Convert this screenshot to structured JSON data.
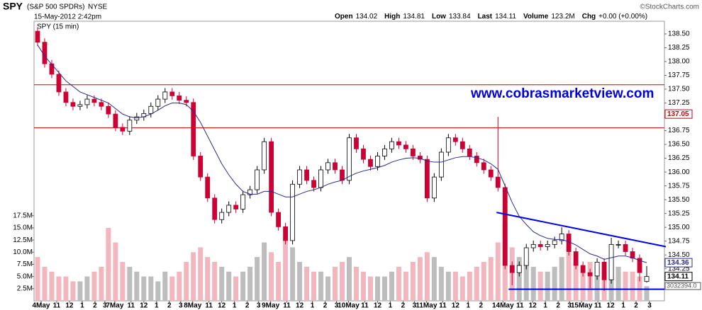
{
  "header": {
    "symbol": "SPY",
    "name": "(S&P 500 SPDRs)",
    "exchange": "NYSE",
    "date": "15-May-2012 2:42pm",
    "copyright": "©StockCharts.com",
    "stats": [
      {
        "label": "Open",
        "value": 134.02
      },
      {
        "label": "High",
        "value": 134.81
      },
      {
        "label": "Low",
        "value": 133.84
      },
      {
        "label": "Last",
        "value": 134.11
      },
      {
        "label": "Volume",
        "value": "123.2M"
      },
      {
        "label": "Chg",
        "value": "+0.00 (+0.00%)"
      }
    ]
  },
  "chart_data": {
    "type": "candlestick",
    "label": "SPY (15 min)",
    "annotation": "www.cobrasmarketview.com",
    "xlim": [
      -0.5,
      88.5
    ],
    "xticks": [
      {
        "value": 0.5,
        "label": "4May"
      },
      {
        "value": 2.7,
        "label": "11"
      },
      {
        "value": 4.5,
        "label": "12"
      },
      {
        "value": 6.3,
        "label": "1"
      },
      {
        "value": 8.1,
        "label": "2"
      },
      {
        "value": 9.5,
        "label": "3"
      },
      {
        "value": 10.9,
        "label": "7May"
      },
      {
        "value": 13.2,
        "label": "11"
      },
      {
        "value": 15,
        "label": "12"
      },
      {
        "value": 16.8,
        "label": "1"
      },
      {
        "value": 18.6,
        "label": "2"
      },
      {
        "value": 20.2,
        "label": "3"
      },
      {
        "value": 21.9,
        "label": "8May"
      },
      {
        "value": 24.2,
        "label": "11"
      },
      {
        "value": 26,
        "label": "12"
      },
      {
        "value": 27.8,
        "label": "1"
      },
      {
        "value": 29.6,
        "label": "2"
      },
      {
        "value": 31.2,
        "label": "3"
      },
      {
        "value": 32.9,
        "label": "9May"
      },
      {
        "value": 35.2,
        "label": "11"
      },
      {
        "value": 37,
        "label": "12"
      },
      {
        "value": 38.8,
        "label": "1"
      },
      {
        "value": 40.6,
        "label": "2"
      },
      {
        "value": 42.2,
        "label": "3"
      },
      {
        "value": 43.9,
        "label": "10May"
      },
      {
        "value": 46.2,
        "label": "11"
      },
      {
        "value": 48,
        "label": "12"
      },
      {
        "value": 49.8,
        "label": "1"
      },
      {
        "value": 51.6,
        "label": "2"
      },
      {
        "value": 53.2,
        "label": "3"
      },
      {
        "value": 54.9,
        "label": "11May"
      },
      {
        "value": 57.2,
        "label": "11"
      },
      {
        "value": 59,
        "label": "12"
      },
      {
        "value": 60.8,
        "label": "1"
      },
      {
        "value": 62.6,
        "label": "2"
      },
      {
        "value": 65.7,
        "label": "14May"
      },
      {
        "value": 68.1,
        "label": "11"
      },
      {
        "value": 69.9,
        "label": "12"
      },
      {
        "value": 71.7,
        "label": "1"
      },
      {
        "value": 73.5,
        "label": "2"
      },
      {
        "value": 75.1,
        "label": "3"
      },
      {
        "value": 76.8,
        "label": "15May"
      },
      {
        "value": 79.1,
        "label": "11"
      },
      {
        "value": 80.9,
        "label": "12"
      },
      {
        "value": 82.7,
        "label": "1"
      },
      {
        "value": 84.5,
        "label": "2"
      },
      {
        "value": 86.4,
        "label": "3"
      }
    ],
    "ylim": [
      133.67,
      138.73
    ],
    "yticks": [
      {
        "value": 134.25,
        "label": "134.25"
      },
      {
        "value": 134.5,
        "label": "134.50"
      },
      {
        "value": 134.75,
        "label": "134.75"
      },
      {
        "value": 135,
        "label": "135.00"
      },
      {
        "value": 135.25,
        "label": "135.25"
      },
      {
        "value": 135.5,
        "label": "135.50"
      },
      {
        "value": 135.75,
        "label": "135.75"
      },
      {
        "value": 136,
        "label": "136.00"
      },
      {
        "value": 136.25,
        "label": "136.25"
      },
      {
        "value": 136.5,
        "label": "136.50"
      },
      {
        "value": 136.75,
        "label": "136.75"
      },
      {
        "value": 137,
        "label": "137.00"
      },
      {
        "value": 137.25,
        "label": "137.25"
      },
      {
        "value": 137.5,
        "label": "137.50"
      },
      {
        "value": 137.75,
        "label": "137.75"
      },
      {
        "value": 138,
        "label": "138.00"
      },
      {
        "value": 138.25,
        "label": "138.25"
      },
      {
        "value": 138.5,
        "label": "138.50"
      }
    ],
    "y2lim": [
      0,
      57.5
    ],
    "y2ticks": [
      {
        "value": 2.5,
        "label": "2.5M"
      },
      {
        "value": 5,
        "label": "5.0M"
      },
      {
        "value": 7.5,
        "label": "7.5M"
      },
      {
        "value": 10,
        "label": "10.0M"
      },
      {
        "value": 12.5,
        "label": "12.5M"
      },
      {
        "value": 15,
        "label": "15.0M"
      },
      {
        "value": 17.5,
        "label": "17.5M"
      }
    ],
    "up_color": "#000000",
    "down_color": "#cc0033",
    "volume_up_color": "#bdbdbd",
    "volume_down_color": "#f2b6bf",
    "open": [
      138.55,
      138.35,
      137.96,
      137.77,
      137.45,
      137.26,
      137.19,
      137.22,
      137.32,
      137.26,
      137.19,
      137.05,
      136.81,
      136.74,
      136.94,
      137.0,
      137.06,
      137.19,
      137.32,
      137.45,
      137.38,
      137.3,
      137.26,
      136.29,
      135.91,
      135.53,
      135.14,
      135.27,
      135.4,
      135.33,
      135.59,
      135.68,
      136.04,
      136.55,
      135.27,
      135.01,
      134.76,
      135.78,
      136.04,
      135.85,
      135.72,
      136.04,
      136.17,
      136.04,
      135.85,
      136.62,
      136.42,
      136.23,
      136.1,
      136.29,
      136.42,
      136.55,
      136.49,
      136.42,
      136.29,
      136.23,
      135.53,
      135.91,
      136.36,
      136.62,
      136.55,
      136.42,
      136.29,
      136.17,
      136.04,
      135.91,
      135.72,
      134.31,
      134.18,
      134.31,
      134.63,
      134.69,
      134.65,
      134.69,
      134.76,
      134.88,
      134.56,
      134.31,
      134.18,
      134.12,
      134.37,
      134.05,
      134.69,
      134.69,
      134.56,
      134.44,
      134.02
    ],
    "high": [
      138.62,
      138.42,
      138.03,
      137.84,
      137.52,
      137.33,
      137.29,
      137.39,
      137.39,
      137.33,
      137.26,
      137.12,
      136.88,
      137.01,
      137.07,
      137.13,
      137.26,
      137.39,
      137.52,
      137.52,
      137.45,
      137.37,
      137.33,
      136.36,
      135.98,
      135.6,
      135.34,
      135.47,
      135.47,
      135.66,
      135.75,
      136.11,
      136.62,
      136.62,
      135.34,
      135.08,
      135.85,
      136.11,
      136.11,
      135.92,
      136.11,
      136.24,
      136.24,
      136.11,
      136.69,
      136.69,
      136.49,
      136.3,
      136.36,
      136.49,
      136.62,
      136.62,
      136.56,
      136.49,
      136.36,
      136.3,
      135.98,
      136.43,
      136.69,
      136.69,
      136.62,
      136.49,
      136.36,
      136.24,
      136.11,
      137.0,
      135.79,
      134.38,
      134.38,
      134.7,
      134.76,
      134.76,
      134.76,
      134.83,
      135.0,
      134.95,
      134.63,
      134.38,
      134.25,
      134.44,
      134.44,
      134.81,
      134.76,
      134.76,
      134.63,
      134.51,
      134.3
    ],
    "low": [
      138.28,
      137.89,
      137.7,
      137.38,
      137.19,
      137.12,
      137.12,
      137.15,
      137.19,
      137.12,
      136.98,
      136.74,
      136.67,
      136.67,
      136.87,
      136.93,
      136.99,
      137.12,
      137.25,
      137.31,
      137.23,
      137.19,
      136.22,
      135.84,
      135.46,
      135.07,
      135.07,
      135.2,
      135.26,
      135.26,
      135.52,
      135.61,
      135.97,
      135.2,
      134.94,
      134.69,
      134.69,
      135.71,
      135.78,
      135.65,
      135.65,
      135.97,
      135.97,
      135.78,
      135.78,
      136.35,
      136.16,
      136.03,
      136.03,
      136.22,
      136.35,
      136.42,
      136.35,
      136.22,
      136.16,
      135.46,
      135.46,
      135.84,
      136.29,
      136.48,
      136.35,
      136.22,
      136.1,
      135.97,
      135.84,
      135.65,
      134.24,
      133.95,
      134.11,
      134.24,
      134.56,
      134.58,
      134.58,
      134.62,
      134.69,
      134.49,
      134.24,
      134.11,
      133.9,
      134.05,
      133.85,
      133.98,
      134.62,
      134.49,
      134.37,
      134.02,
      134.0
    ],
    "close": [
      138.35,
      137.96,
      137.77,
      137.45,
      137.26,
      137.19,
      137.22,
      137.32,
      137.26,
      137.19,
      137.05,
      136.81,
      136.74,
      136.94,
      137.0,
      137.06,
      137.19,
      137.32,
      137.45,
      137.38,
      137.3,
      137.26,
      136.29,
      135.91,
      135.53,
      135.14,
      135.27,
      135.4,
      135.33,
      135.59,
      135.68,
      136.04,
      136.55,
      135.27,
      135.01,
      134.76,
      135.78,
      136.04,
      135.85,
      135.72,
      136.04,
      136.17,
      136.04,
      135.85,
      136.62,
      136.42,
      136.23,
      136.1,
      136.29,
      136.42,
      136.55,
      136.49,
      136.42,
      136.29,
      136.23,
      135.53,
      135.91,
      136.36,
      136.62,
      136.55,
      136.42,
      136.29,
      136.17,
      136.04,
      135.91,
      135.72,
      134.31,
      134.18,
      134.31,
      134.63,
      134.69,
      134.65,
      134.69,
      134.76,
      134.88,
      134.56,
      134.31,
      134.18,
      134.12,
      134.37,
      134.05,
      134.69,
      134.69,
      134.56,
      134.44,
      134.18,
      134.11
    ],
    "volume": [
      9,
      7,
      6,
      5,
      5,
      4,
      4,
      5,
      6,
      7,
      15,
      12,
      8,
      7,
      6,
      5,
      5,
      4,
      6,
      5,
      6,
      8,
      10,
      11,
      9,
      8,
      7,
      6,
      5,
      6,
      7,
      9,
      12,
      10,
      8,
      13,
      11,
      8,
      7,
      6,
      6,
      5,
      7,
      8,
      9,
      7,
      6,
      5,
      5,
      5,
      6,
      7,
      6,
      8,
      9,
      10,
      9,
      7,
      6,
      6,
      5,
      6,
      7,
      8,
      9,
      12,
      16,
      11,
      9,
      8,
      7,
      6,
      6,
      7,
      9,
      10,
      8,
      7,
      8,
      7,
      6,
      9,
      7,
      6,
      6,
      5,
      3
    ],
    "ma": {
      "color": "#2b2b8c",
      "values": [
        138.3,
        138.1,
        137.95,
        137.8,
        137.65,
        137.55,
        137.45,
        137.4,
        137.35,
        137.3,
        137.25,
        137.15,
        137.05,
        137.0,
        136.98,
        137.0,
        137.05,
        137.12,
        137.2,
        137.25,
        137.25,
        137.22,
        137.1,
        136.9,
        136.65,
        136.4,
        136.15,
        135.95,
        135.78,
        135.65,
        135.6,
        135.6,
        135.65,
        135.65,
        135.6,
        135.55,
        135.55,
        135.6,
        135.65,
        135.68,
        135.72,
        135.78,
        135.82,
        135.85,
        135.92,
        135.98,
        136.02,
        136.05,
        136.08,
        136.12,
        136.18,
        136.22,
        136.25,
        136.26,
        136.25,
        136.2,
        136.18,
        136.18,
        136.22,
        136.26,
        136.28,
        136.28,
        136.26,
        136.22,
        136.15,
        136.05,
        135.75,
        135.45,
        135.2,
        135.05,
        134.92,
        134.85,
        134.8,
        134.78,
        134.78,
        134.74,
        134.68,
        134.6,
        134.52,
        134.48,
        134.42,
        134.45,
        134.48,
        134.48,
        134.45,
        134.4,
        134.36
      ]
    },
    "levels": [
      {
        "value": 137.58,
        "color": "#cc0000"
      },
      {
        "value": 136.8,
        "color": "#cc0000"
      }
    ],
    "trendlines": [
      {
        "x": [
          64.8,
          88.7
        ],
        "y": [
          135.27,
          134.65
        ],
        "color": "#0000ee"
      },
      {
        "x": [
          66.5,
          88.5
        ],
        "y": [
          133.88,
          133.88
        ],
        "color": "#0000ee"
      }
    ],
    "price_tags": [
      {
        "value": 137.05,
        "label": "137.05",
        "color": "#cc0000"
      },
      {
        "value": 134.36,
        "label": "134.36",
        "color": "#2b2b8c"
      },
      {
        "value": 134.11,
        "label": "134.11",
        "color": "#000000"
      }
    ],
    "volume_tags": [
      {
        "value": 3.032394,
        "label": "3032394.0",
        "color": "#555555"
      }
    ]
  }
}
